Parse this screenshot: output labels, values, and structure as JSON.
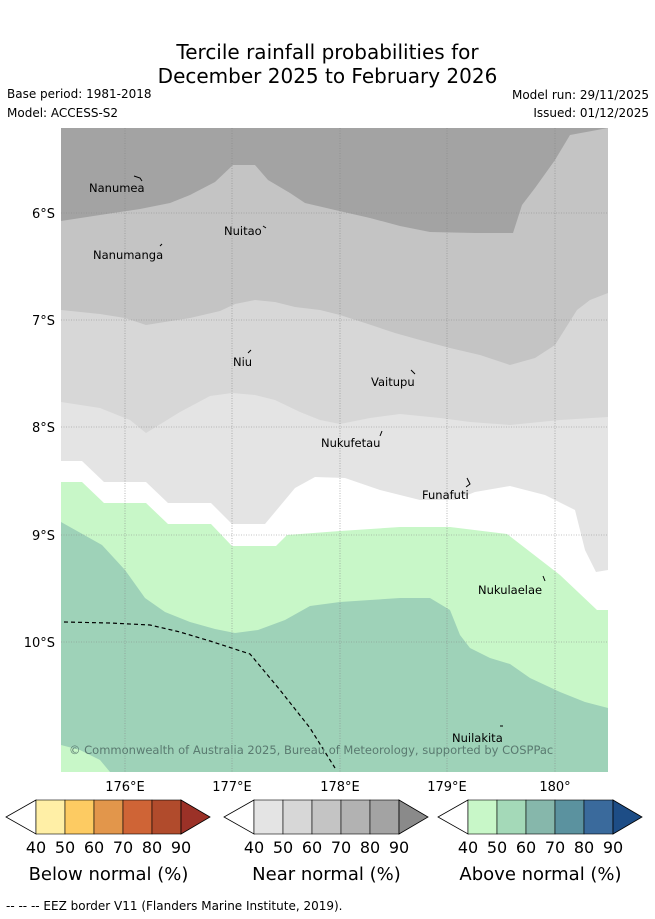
{
  "title": {
    "line1": "Tercile rainfall probabilities for",
    "line2": "December 2025 to February 2026"
  },
  "meta": {
    "base_period": "Base period: 1981-2018",
    "model": "Model: ACCESS-S2",
    "model_run": "Model run: 29/11/2025",
    "issued": "Issued: 01/12/2025"
  },
  "map": {
    "lat_labels": [
      "6°S",
      "7°S",
      "8°S",
      "9°S",
      "10°S"
    ],
    "lon_labels": [
      "176°E",
      "177°E",
      "178°E",
      "179°E",
      "180°"
    ],
    "places": [
      "Nanumea",
      "Nuitao",
      "Nanumanga",
      "Niu",
      "Vaitupu",
      "Nukufetau",
      "Funafuti",
      "Nukulaelae",
      "Nuilakita"
    ],
    "copyright": "© Commonwealth of Australia 2025, Bureau of Meteorology, supported by COSPPac"
  },
  "colors": {
    "near60": "#c4c4c4",
    "near70": "#b2b2b2",
    "near80": "#a3a3a3",
    "near50": "#d7d7d7",
    "near40": "#e4e4e4",
    "above40": "#c8f7c8",
    "above50": "#9ed2b8",
    "below": [
      "#ffefa6",
      "#fdcb62",
      "#e2964b",
      "#cf6436",
      "#b14b2c",
      "#9b3127"
    ],
    "near": [
      "#e4e4e4",
      "#d7d7d7",
      "#c4c4c4",
      "#b2b2b2",
      "#a3a3a3",
      "#8a8a8a"
    ],
    "above": [
      "#c8f7c8",
      "#a4d9b8",
      "#86b7ab",
      "#5b929f",
      "#3a6a9c",
      "#1d4d86"
    ]
  },
  "legends": [
    {
      "title": "Below normal (%)",
      "ticks": [
        "40",
        "50",
        "60",
        "70",
        "80",
        "90"
      ]
    },
    {
      "title": "Near normal (%)",
      "ticks": [
        "40",
        "50",
        "60",
        "70",
        "80",
        "90"
      ]
    },
    {
      "title": "Above normal (%)",
      "ticks": [
        "40",
        "50",
        "60",
        "70",
        "80",
        "90"
      ]
    }
  ],
  "footnote": "--  --  -- EEZ border V11 (Flanders Marine Institute, 2019)."
}
